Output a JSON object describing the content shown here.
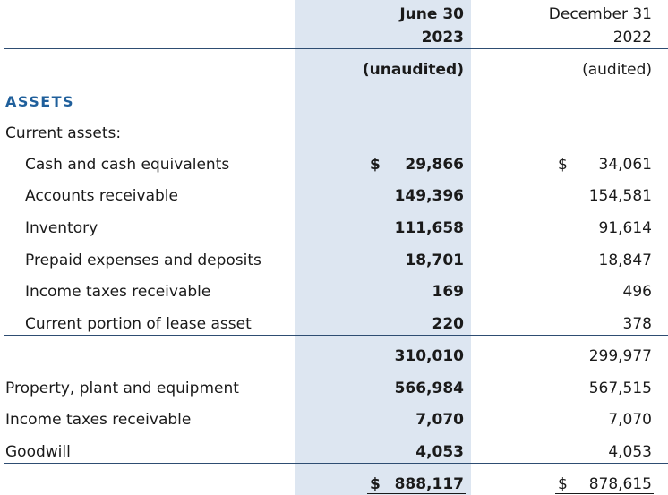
{
  "header": {
    "col1_line1": "June 30",
    "col1_line2": "2023",
    "col1_status": "(unaudited)",
    "col2_line1": "December 31",
    "col2_line2": "2022",
    "col2_status": "(audited)"
  },
  "section_title": "ASSETS",
  "subsection_title": "Current assets:",
  "currency_symbol": "$",
  "rows": [
    {
      "label": "Cash and cash equivalents",
      "v2023": "29,866",
      "v2022": "34,061"
    },
    {
      "label": "Accounts receivable",
      "v2023": "149,396",
      "v2022": "154,581"
    },
    {
      "label": "Inventory",
      "v2023": "111,658",
      "v2022": "91,614"
    },
    {
      "label": "Prepaid expenses and deposits",
      "v2023": "18,701",
      "v2022": "18,847"
    },
    {
      "label": "Income taxes receivable",
      "v2023": "169",
      "v2022": "496"
    },
    {
      "label": "Current portion of lease asset",
      "v2023": "220",
      "v2022": "378"
    }
  ],
  "current_total": {
    "v2023": "310,010",
    "v2022": "299,977"
  },
  "noncurrent": [
    {
      "label": "Property, plant and equipment",
      "v2023": "566,984",
      "v2022": "567,515"
    },
    {
      "label": "Income taxes receivable",
      "v2023": "7,070",
      "v2022": "7,070"
    },
    {
      "label": "Goodwill",
      "v2023": "4,053",
      "v2022": "4,053"
    }
  ],
  "total": {
    "v2023": "888,117",
    "v2022": "878,615"
  }
}
